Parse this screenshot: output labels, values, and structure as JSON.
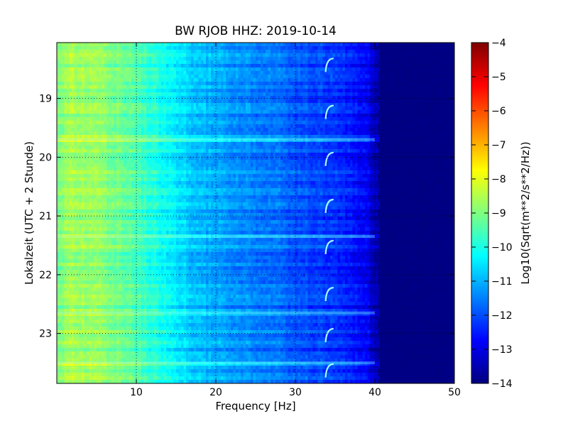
{
  "chart_data": {
    "type": "heatmap",
    "title": "BW RJOB HHZ: 2019-10-14",
    "xlabel": "Frequency [Hz]",
    "ylabel": "Lokalzeit (UTC + 2 Stunde)",
    "xlim": [
      0,
      50
    ],
    "ylim": [
      18.05,
      23.85
    ],
    "y_inverted": true,
    "x_ticks": [
      10,
      20,
      30,
      40,
      50
    ],
    "x_tick_labels": [
      "10",
      "20",
      "30",
      "40",
      "50"
    ],
    "y_ticks": [
      19,
      20,
      21,
      22,
      23
    ],
    "y_tick_labels": [
      "19",
      "20",
      "21",
      "22",
      "23"
    ],
    "grid": true,
    "colormap": "jet",
    "colorbar": {
      "label": "Log10(Sqrt(m**2/s**2/Hz))",
      "range": [
        -14,
        -4
      ],
      "ticks": [
        -4,
        -5,
        -6,
        -7,
        -8,
        -9,
        -10,
        -11,
        -12,
        -13,
        -14
      ],
      "tick_labels": [
        "−4",
        "−5",
        "−6",
        "−7",
        "−8",
        "−9",
        "−10",
        "−11",
        "−12",
        "−13",
        "−14"
      ]
    },
    "spectral_profile": {
      "frequency_hz": [
        0,
        2,
        5,
        8,
        10,
        12,
        15,
        17,
        20,
        23,
        25,
        28,
        30,
        33,
        35,
        37,
        39,
        40,
        41,
        50
      ],
      "log10_amplitude": [
        -9.0,
        -8.6,
        -8.8,
        -9.2,
        -9.5,
        -9.9,
        -10.4,
        -10.8,
        -11.1,
        -11.4,
        -11.5,
        -11.7,
        -11.9,
        -12.1,
        -12.3,
        -12.5,
        -12.8,
        -13.5,
        -14.0,
        -14.0
      ]
    },
    "broadband_events_hours": [
      19.7,
      21.35,
      22.65,
      23.5
    ],
    "periodic_line": {
      "frequency_hz": [
        33.8,
        34.8
      ],
      "times_hours": [
        18.4,
        19.2,
        20.0,
        20.8,
        21.5,
        22.3,
        23.0,
        23.6
      ]
    }
  }
}
